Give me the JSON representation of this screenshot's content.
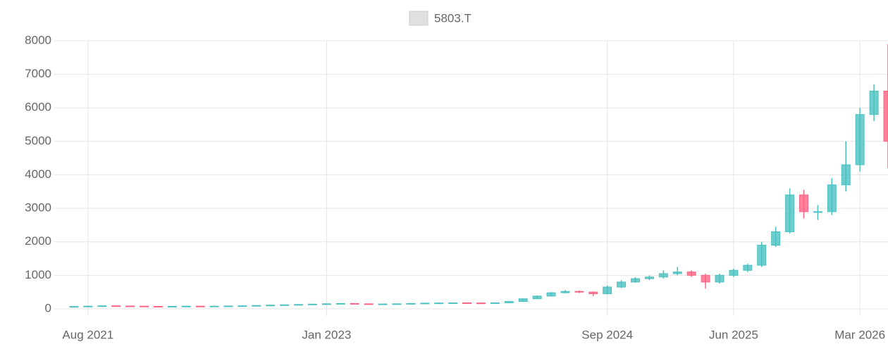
{
  "chart_data": {
    "type": "candlestick",
    "legend": "5803.T",
    "legend_color": "#e0e0e0",
    "legend_position": "top",
    "up_color": "#4bc0c0",
    "down_color": "#ff6384",
    "grid": true,
    "x": [
      "2021-07",
      "2021-08",
      "2021-09",
      "2021-10",
      "2021-11",
      "2021-12",
      "2022-01",
      "2022-02",
      "2022-03",
      "2022-04",
      "2022-05",
      "2022-06",
      "2022-07",
      "2022-08",
      "2022-09",
      "2022-10",
      "2022-11",
      "2022-12",
      "2023-01",
      "2023-02",
      "2023-03",
      "2023-04",
      "2023-05",
      "2023-06",
      "2023-07",
      "2023-08",
      "2023-09",
      "2023-10",
      "2023-11",
      "2023-12",
      "2024-01",
      "2024-02",
      "2024-03",
      "2024-04",
      "2024-05",
      "2024-06",
      "2024-07",
      "2024-08",
      "2024-09",
      "2024-10",
      "2024-11",
      "2024-12",
      "2025-01",
      "2025-02",
      "2025-03",
      "2025-04",
      "2025-05",
      "2025-06",
      "2025-07",
      "2025-08",
      "2025-09",
      "2025-10",
      "2025-11",
      "2025-12",
      "2026-01",
      "2026-02",
      "2026-03",
      "2026-04",
      "2026-05"
    ],
    "open": [
      65,
      70,
      80,
      90,
      85,
      80,
      75,
      70,
      75,
      80,
      75,
      80,
      85,
      90,
      100,
      110,
      120,
      130,
      140,
      150,
      160,
      150,
      140,
      145,
      150,
      160,
      170,
      175,
      180,
      175,
      170,
      180,
      220,
      300,
      380,
      480,
      520,
      500,
      450,
      650,
      800,
      900,
      950,
      1050,
      1100,
      1000,
      800,
      1000,
      1150,
      1300,
      1900,
      2300,
      3400,
      2900,
      2900,
      3700,
      4300,
      5800,
      6500
    ],
    "high": [
      80,
      90,
      100,
      100,
      95,
      90,
      85,
      85,
      90,
      90,
      90,
      95,
      100,
      110,
      120,
      130,
      140,
      150,
      160,
      170,
      170,
      160,
      155,
      160,
      170,
      180,
      185,
      190,
      190,
      185,
      195,
      230,
      310,
      400,
      500,
      560,
      550,
      520,
      700,
      850,
      950,
      1000,
      1150,
      1250,
      1150,
      1050,
      1050,
      1200,
      1350,
      2000,
      2450,
      3600,
      3550,
      3100,
      3900,
      5000,
      6000,
      6700,
      7900
    ],
    "low": [
      55,
      60,
      70,
      75,
      70,
      65,
      60,
      60,
      65,
      65,
      65,
      70,
      75,
      80,
      90,
      100,
      110,
      120,
      130,
      140,
      140,
      130,
      130,
      135,
      140,
      150,
      160,
      165,
      165,
      160,
      160,
      170,
      210,
      290,
      370,
      460,
      470,
      380,
      430,
      620,
      780,
      860,
      900,
      1000,
      950,
      600,
      750,
      950,
      1100,
      1250,
      1850,
      2250,
      2700,
      2650,
      2800,
      3500,
      4100,
      5600,
      4200
    ],
    "close": [
      70,
      80,
      90,
      85,
      80,
      75,
      70,
      75,
      80,
      75,
      80,
      85,
      90,
      100,
      110,
      120,
      130,
      140,
      150,
      160,
      150,
      140,
      145,
      150,
      160,
      170,
      175,
      180,
      175,
      170,
      180,
      220,
      300,
      380,
      480,
      520,
      500,
      450,
      650,
      800,
      900,
      950,
      1050,
      1100,
      1000,
      800,
      1000,
      1150,
      1300,
      1900,
      2300,
      3400,
      2900,
      2900,
      3700,
      4300,
      5800,
      6500,
      5000
    ],
    "xlim": [
      "2021-06",
      "2026-05"
    ],
    "xticks": [
      {
        "value": "2021-08",
        "label": "Aug 2021"
      },
      {
        "value": "2023-01",
        "label": "Jan 2023"
      },
      {
        "value": "2024-09",
        "label": "Sep 2024"
      },
      {
        "value": "2025-06",
        "label": "Jun 2025"
      },
      {
        "value": "2026-03",
        "label": "Mar 2026"
      }
    ],
    "ylim": [
      0,
      8000
    ],
    "yticks": [
      0,
      1000,
      2000,
      3000,
      4000,
      5000,
      6000,
      7000,
      8000
    ]
  }
}
